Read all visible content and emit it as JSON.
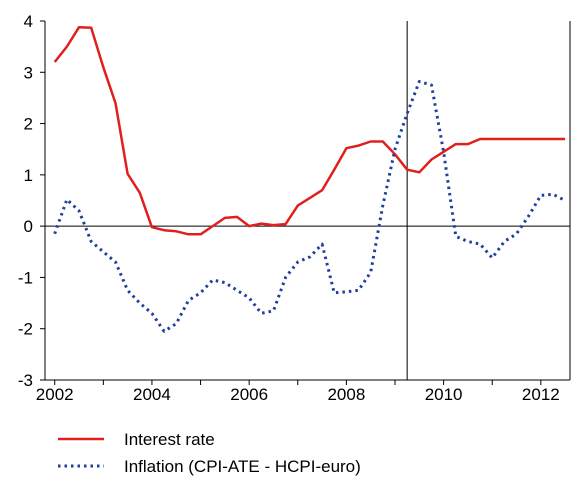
{
  "chart_data": {
    "type": "line",
    "title": "",
    "xlabel": "",
    "ylabel": "",
    "xlim": [
      2001.8,
      2012.6
    ],
    "ylim": [
      -3,
      4
    ],
    "y_ticks": [
      -3,
      -2,
      -1,
      0,
      1,
      2,
      3,
      4
    ],
    "y_tick_labels": [
      "-3",
      "-2",
      "-1",
      "0",
      "1",
      "2",
      "3",
      "4"
    ],
    "x_ticks": [
      2002,
      2004,
      2006,
      2008,
      2010,
      2012
    ],
    "x_tick_labels": [
      "2002",
      "2004",
      "2006",
      "2008",
      "2010",
      "2012"
    ],
    "reference_lines": {
      "horizontal_y": 0,
      "vertical_x": 2009.25
    },
    "grid": false,
    "legend_position": "bottom-left",
    "series": [
      {
        "name": "Interest rate",
        "color": "#e0201f",
        "style": "solid",
        "x": [
          2002.0,
          2002.25,
          2002.5,
          2002.75,
          2003.0,
          2003.25,
          2003.5,
          2003.75,
          2004.0,
          2004.25,
          2004.5,
          2004.75,
          2005.0,
          2005.25,
          2005.5,
          2005.75,
          2006.0,
          2006.25,
          2006.5,
          2006.75,
          2007.0,
          2007.25,
          2007.5,
          2007.75,
          2008.0,
          2008.25,
          2008.5,
          2008.75,
          2009.0,
          2009.25,
          2009.5,
          2009.75,
          2010.0,
          2010.25,
          2010.5,
          2010.75,
          2011.0,
          2011.25,
          2011.5,
          2011.75,
          2012.0,
          2012.25,
          2012.5
        ],
        "values": [
          3.2,
          3.5,
          3.88,
          3.87,
          3.1,
          2.4,
          1.02,
          0.65,
          -0.02,
          -0.08,
          -0.1,
          -0.16,
          -0.16,
          0.0,
          0.16,
          0.18,
          0.0,
          0.05,
          0.02,
          0.04,
          0.4,
          0.55,
          0.7,
          1.1,
          1.52,
          1.57,
          1.65,
          1.65,
          1.4,
          1.1,
          1.05,
          1.3,
          1.45,
          1.6,
          1.6,
          1.7,
          1.7,
          1.7,
          1.7,
          1.7,
          1.7,
          1.7,
          1.7
        ]
      },
      {
        "name": "Inflation (CPI-ATE - HCPI-euro)",
        "color": "#1f3e9e",
        "style": "dotted",
        "x": [
          2002.0,
          2002.25,
          2002.5,
          2002.75,
          2003.0,
          2003.25,
          2003.5,
          2003.75,
          2004.0,
          2004.25,
          2004.5,
          2004.75,
          2005.0,
          2005.25,
          2005.5,
          2005.75,
          2006.0,
          2006.25,
          2006.5,
          2006.75,
          2007.0,
          2007.25,
          2007.5,
          2007.75,
          2008.0,
          2008.25,
          2008.5,
          2008.75,
          2009.0,
          2009.25,
          2009.5,
          2009.75,
          2010.0,
          2010.25,
          2010.5,
          2010.75,
          2011.0,
          2011.25,
          2011.5,
          2011.75,
          2012.0,
          2012.25,
          2012.5
        ],
        "values": [
          -0.15,
          0.52,
          0.3,
          -0.3,
          -0.5,
          -0.7,
          -1.25,
          -1.5,
          -1.7,
          -2.05,
          -1.9,
          -1.45,
          -1.3,
          -1.05,
          -1.1,
          -1.25,
          -1.4,
          -1.7,
          -1.65,
          -1.0,
          -0.7,
          -0.6,
          -0.35,
          -1.3,
          -1.28,
          -1.25,
          -0.9,
          0.4,
          1.5,
          2.2,
          2.82,
          2.75,
          1.45,
          -0.2,
          -0.3,
          -0.35,
          -0.62,
          -0.3,
          -0.15,
          0.2,
          0.6,
          0.62,
          0.5
        ]
      }
    ]
  }
}
